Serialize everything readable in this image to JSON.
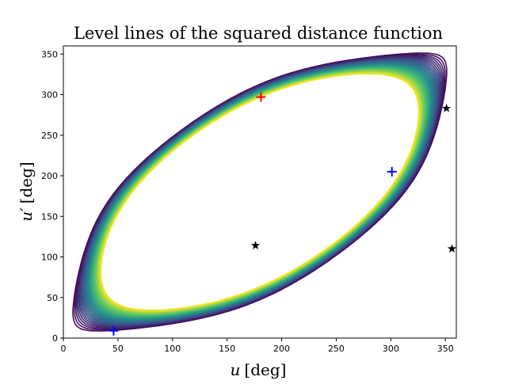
{
  "chart_data": {
    "type": "contour",
    "title": "Level lines of the squared distance function",
    "xlabel_var": "u",
    "xlabel_unit": "[deg]",
    "ylabel_var": "u′",
    "ylabel_unit": "[deg]",
    "xlim": [
      0,
      360
    ],
    "ylim": [
      0,
      360
    ],
    "xticks": [
      0,
      50,
      100,
      150,
      200,
      250,
      300,
      350
    ],
    "yticks": [
      0,
      50,
      100,
      150,
      200,
      250,
      300,
      350
    ],
    "grid": false,
    "colormap": [
      "#440154",
      "#3b528b",
      "#21918c",
      "#5ec962",
      "#fde725"
    ],
    "markers": [
      {
        "kind": "max",
        "symbol": "+",
        "color": "#ff0000",
        "x": 181,
        "y": 297
      },
      {
        "kind": "min",
        "symbol": "+",
        "color": "#0000ff",
        "x": 46,
        "y": 9
      },
      {
        "kind": "min",
        "symbol": "+",
        "color": "#0000ff",
        "x": 301,
        "y": 205
      },
      {
        "kind": "saddle",
        "symbol": "★",
        "color": "#000000",
        "x": 176,
        "y": 114
      },
      {
        "kind": "saddle",
        "symbol": "★",
        "color": "#000000",
        "x": 351,
        "y": 283
      },
      {
        "kind": "saddle",
        "symbol": "★",
        "color": "#000000",
        "x": 356,
        "y": 110
      }
    ]
  }
}
